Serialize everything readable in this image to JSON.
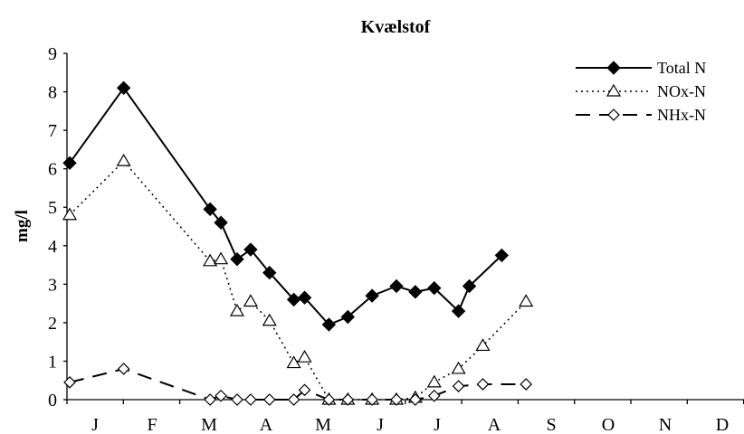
{
  "chart_data": {
    "type": "line",
    "title": "Kvælstof",
    "ylabel": "mg/l",
    "xlabel": "",
    "ylim": [
      0,
      9
    ],
    "yticks": [
      0,
      1,
      2,
      3,
      4,
      5,
      6,
      7,
      8,
      9
    ],
    "xlim": [
      0,
      12
    ],
    "month_labels": [
      "J",
      "F",
      "M",
      "A",
      "M",
      "J",
      "J",
      "A",
      "S",
      "O",
      "N",
      "D"
    ],
    "grid": false,
    "legend_position": "top-right",
    "series": [
      {
        "name": "Total N",
        "style": "solid",
        "marker": "filled-diamond",
        "x": [
          0.0,
          1.0,
          2.6,
          2.8,
          3.1,
          3.35,
          3.7,
          4.15,
          4.35,
          4.8,
          5.15,
          5.6,
          6.05,
          6.4,
          6.75,
          7.2,
          7.4,
          8.0,
          8.45
        ],
        "values": [
          6.15,
          8.1,
          4.95,
          4.6,
          3.65,
          3.9,
          3.3,
          2.6,
          2.65,
          1.95,
          2.15,
          2.7,
          2.95,
          2.8,
          2.9,
          2.3,
          2.95,
          3.75,
          null
        ]
      },
      {
        "name": "NOx-N",
        "style": "dotted",
        "marker": "open-triangle",
        "x": [
          0.0,
          1.0,
          2.6,
          2.8,
          3.1,
          3.35,
          3.7,
          4.15,
          4.35,
          4.8,
          5.15,
          5.6,
          6.05,
          6.4,
          6.75,
          7.2,
          7.65,
          8.45
        ],
        "values": [
          4.8,
          6.2,
          3.6,
          3.65,
          2.3,
          2.55,
          2.05,
          0.95,
          1.1,
          0.0,
          0.0,
          0.0,
          0.0,
          0.05,
          0.45,
          0.8,
          1.4,
          2.55
        ]
      },
      {
        "name": "NHx-N",
        "style": "dashed",
        "marker": "open-diamond",
        "x": [
          0.0,
          1.0,
          2.6,
          2.8,
          3.1,
          3.35,
          3.7,
          4.15,
          4.35,
          4.8,
          5.15,
          5.6,
          6.05,
          6.4,
          6.75,
          7.2,
          7.65,
          8.45
        ],
        "values": [
          0.45,
          0.8,
          0.0,
          0.1,
          0.0,
          0.0,
          0.0,
          0.0,
          0.25,
          0.0,
          0.0,
          0.0,
          0.0,
          0.0,
          0.1,
          0.35,
          0.4,
          0.4
        ]
      }
    ]
  }
}
